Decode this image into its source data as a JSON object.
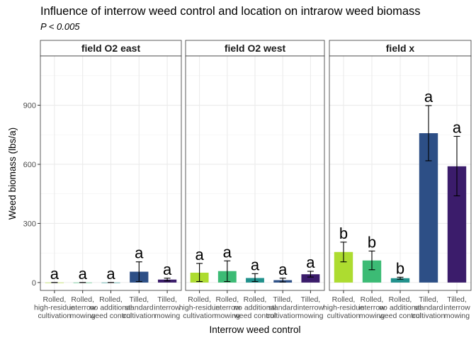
{
  "chart_data": {
    "type": "bar",
    "title": "Influence of interrow weed control and location on intrarow weed biomass",
    "subtitle": "P < 0.005",
    "xlabel": "Interrow weed control",
    "ylabel": "Weed biomass (lbs/a)",
    "ylim": [
      -40,
      1150
    ],
    "yticks": [
      0,
      300,
      600,
      900
    ],
    "grid": true,
    "categories": [
      [
        "Rolled,",
        "high-residue",
        "cultivation"
      ],
      [
        "Rolled,",
        "interrow",
        "mowing"
      ],
      [
        "Rolled,",
        "no additional",
        "weed control"
      ],
      [
        "Tilled,",
        "standard",
        "cultivation"
      ],
      [
        "Tilled,",
        "interrow",
        "mowing"
      ]
    ],
    "colors": [
      "#addc30",
      "#3cbb75",
      "#21918c",
      "#2d4f86",
      "#3b1c6b"
    ],
    "facets": [
      {
        "name": "field O2 east",
        "values": [
          0,
          0,
          0,
          55,
          15
        ],
        "err_low": [
          0,
          0,
          0,
          5,
          8
        ],
        "err_high": [
          0,
          0,
          0,
          105,
          22
        ],
        "letters": [
          "a",
          "a",
          "a",
          "a",
          "a"
        ]
      },
      {
        "name": "field O2 west",
        "values": [
          50,
          58,
          23,
          12,
          42
        ],
        "err_low": [
          5,
          5,
          5,
          3,
          28
        ],
        "err_high": [
          97,
          110,
          45,
          22,
          57
        ],
        "letters": [
          "a",
          "a",
          "a",
          "a",
          "a"
        ]
      },
      {
        "name": "field x",
        "values": [
          155,
          112,
          22,
          758,
          590
        ],
        "err_low": [
          105,
          65,
          17,
          618,
          440
        ],
        "err_high": [
          205,
          160,
          27,
          898,
          742
        ],
        "letters": [
          "b",
          "b",
          "b",
          "a",
          "a"
        ]
      }
    ]
  }
}
